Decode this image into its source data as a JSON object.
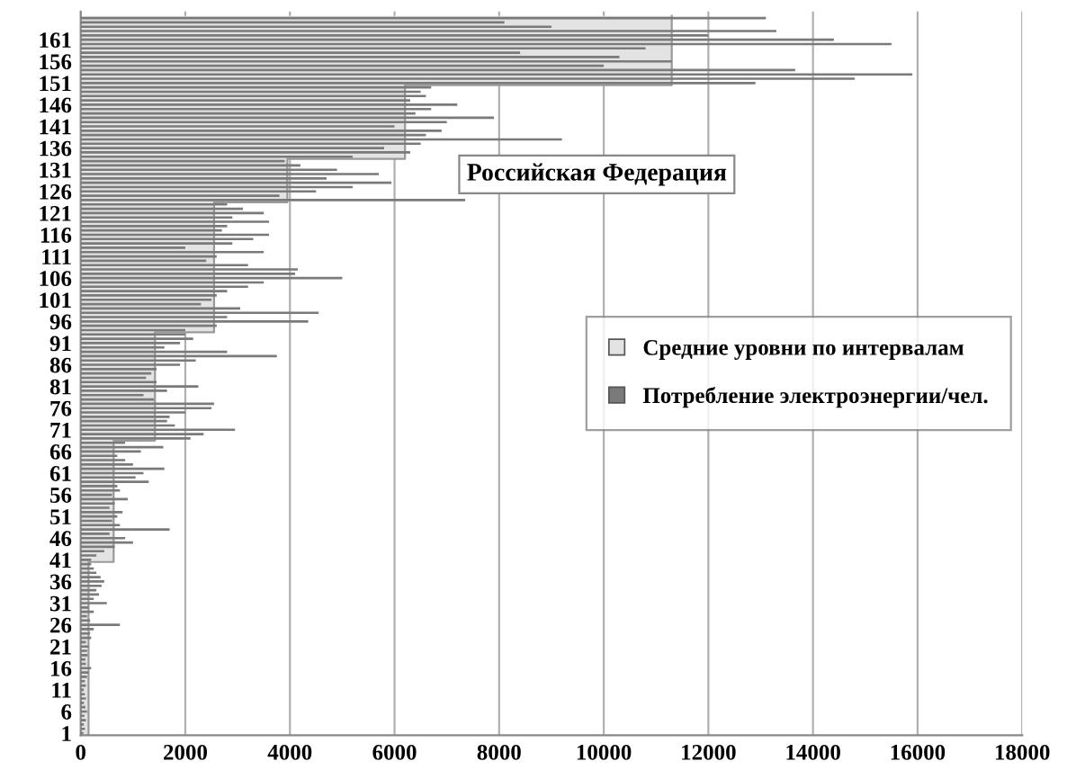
{
  "chart_data": {
    "type": "bar",
    "orientation": "horizontal",
    "categories": [
      null,
      null,
      null,
      null,
      null,
      "161",
      null,
      null,
      null,
      null,
      "156",
      null,
      null,
      null,
      null,
      "151",
      null,
      null,
      null,
      null,
      "146",
      null,
      null,
      null,
      null,
      "141",
      null,
      null,
      null,
      null,
      "136",
      null,
      null,
      null,
      null,
      "131",
      null,
      null,
      null,
      null,
      "126",
      null,
      null,
      null,
      null,
      "121",
      null,
      null,
      null,
      null,
      "116",
      null,
      null,
      null,
      null,
      "111",
      null,
      null,
      null,
      null,
      "106",
      null,
      null,
      null,
      null,
      "101",
      null,
      null,
      null,
      null,
      "96",
      null,
      null,
      null,
      null,
      "91",
      null,
      null,
      null,
      null,
      "86",
      null,
      null,
      null,
      null,
      "81",
      null,
      null,
      null,
      null,
      "76",
      null,
      null,
      null,
      null,
      "71",
      null,
      null,
      null,
      null,
      "66",
      null,
      null,
      null,
      null,
      "61",
      null,
      null,
      null,
      null,
      "56",
      null,
      null,
      null,
      null,
      "51",
      null,
      null,
      null,
      null,
      "46",
      null,
      null,
      null,
      null,
      "41",
      null,
      null,
      null,
      null,
      "36",
      null,
      null,
      null,
      null,
      "31",
      null,
      null,
      null,
      null,
      "26",
      null,
      null,
      null,
      null,
      "21",
      null,
      null,
      null,
      null,
      "16",
      null,
      null,
      null,
      null,
      "11",
      null,
      null,
      null,
      null,
      "6",
      null,
      null,
      null,
      null,
      "1"
    ],
    "series": [
      {
        "name": "Средние уровни по интервалам",
        "type": "area",
        "color": "#e3e3e3",
        "values": [
          11300,
          11300,
          11300,
          11300,
          11300,
          11300,
          11300,
          11300,
          11300,
          11300,
          11300,
          11300,
          11300,
          11300,
          11300,
          11300,
          6200,
          6200,
          6200,
          6200,
          6200,
          6200,
          6200,
          6200,
          6200,
          6200,
          6200,
          6200,
          6200,
          6200,
          6200,
          6200,
          6200,
          3950,
          3950,
          3950,
          3950,
          3950,
          3950,
          3950,
          3950,
          3950,
          3950,
          2550,
          2550,
          2550,
          2550,
          2550,
          2550,
          2550,
          2550,
          2550,
          2550,
          2550,
          2550,
          2550,
          2550,
          2550,
          2550,
          2550,
          2550,
          2550,
          2550,
          2550,
          2550,
          2550,
          2550,
          2550,
          2550,
          2550,
          2550,
          2550,
          2550,
          1420,
          1420,
          1420,
          1420,
          1420,
          1420,
          1420,
          1420,
          1420,
          1420,
          1420,
          1420,
          1420,
          1420,
          1420,
          1420,
          1420,
          1420,
          1420,
          1420,
          1420,
          1420,
          1420,
          1420,
          1420,
          630,
          630,
          630,
          630,
          630,
          630,
          630,
          630,
          630,
          630,
          630,
          630,
          630,
          630,
          630,
          630,
          630,
          630,
          630,
          630,
          630,
          630,
          630,
          630,
          630,
          630,
          630,
          630,
          150,
          150,
          150,
          150,
          150,
          150,
          150,
          150,
          150,
          150,
          150,
          150,
          150,
          150,
          150,
          150,
          150,
          150,
          150,
          150,
          150,
          150,
          150,
          150,
          150,
          150,
          150,
          150,
          150,
          150,
          150,
          150,
          150,
          150,
          150,
          150,
          150,
          150,
          150,
          150
        ]
      },
      {
        "name": "Потребление электроэнергии/чел.",
        "color": "#7a7a7a",
        "values": [
          13100,
          8100,
          9000,
          13300,
          12000,
          14400,
          15500,
          10800,
          8400,
          10300,
          11300,
          10000,
          13660,
          15900,
          14800,
          12900,
          6700,
          6500,
          6600,
          6300,
          7200,
          6700,
          6400,
          7900,
          7000,
          6000,
          6900,
          6600,
          9200,
          6500,
          5800,
          6300,
          5200,
          3900,
          4200,
          4900,
          5700,
          4700,
          5940,
          5200,
          4500,
          3800,
          7350,
          2800,
          3100,
          3500,
          2900,
          3600,
          2800,
          2700,
          3600,
          3300,
          2900,
          2000,
          3500,
          2600,
          2400,
          3200,
          4150,
          4100,
          5000,
          3500,
          3200,
          2800,
          2600,
          2500,
          2300,
          3050,
          4550,
          2800,
          4350,
          2600,
          2000,
          2000,
          2150,
          1900,
          1600,
          2800,
          3750,
          2200,
          1900,
          1450,
          1350,
          1250,
          1450,
          2250,
          1650,
          1200,
          1400,
          2550,
          2500,
          2000,
          1700,
          1650,
          1800,
          2950,
          2350,
          2100,
          850,
          1580,
          1150,
          700,
          850,
          1000,
          1600,
          1200,
          1050,
          1300,
          700,
          750,
          600,
          900,
          650,
          550,
          800,
          700,
          600,
          750,
          1700,
          550,
          850,
          1000,
          650,
          450,
          300,
          200,
          200,
          250,
          300,
          380,
          450,
          400,
          300,
          350,
          250,
          500,
          150,
          250,
          120,
          180,
          750,
          250,
          180,
          200,
          100,
          150,
          120,
          130,
          90,
          100,
          200,
          150,
          120,
          80,
          100,
          60,
          80,
          100,
          60,
          90,
          120,
          70,
          100,
          60,
          80,
          50
        ]
      }
    ],
    "xlim": [
      0,
      18000
    ],
    "xticks": [
      0,
      2000,
      4000,
      6000,
      8000,
      10000,
      12000,
      14000,
      16000,
      18000
    ],
    "grid": "x",
    "legend": "center right",
    "annotations": [
      "Российская Федерация"
    ]
  }
}
